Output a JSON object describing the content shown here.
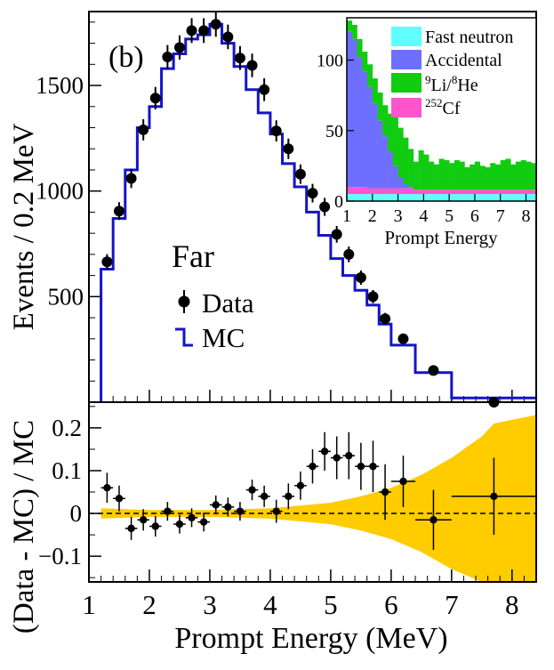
{
  "chart_data": [
    {
      "type": "line",
      "panel_label": "(b)",
      "site_label": "Far",
      "ylabel": "Events / 0.2 MeV",
      "xlim": [
        1,
        8.4
      ],
      "ylim": [
        0,
        1850
      ],
      "yticks": [
        500,
        1000,
        1500
      ],
      "legend": [
        {
          "name": "Data",
          "marker": "dot"
        },
        {
          "name": "MC",
          "marker": "step",
          "color": "#1414c8"
        }
      ],
      "series": [
        {
          "name": "Data",
          "x": [
            1.3,
            1.5,
            1.7,
            1.9,
            2.1,
            2.3,
            2.5,
            2.7,
            2.9,
            3.1,
            3.3,
            3.5,
            3.7,
            3.9,
            4.1,
            4.3,
            4.5,
            4.7,
            4.9,
            5.1,
            5.3,
            5.5,
            5.7,
            5.9,
            6.2,
            6.7,
            7.7
          ],
          "y": [
            665,
            905,
            1060,
            1290,
            1440,
            1635,
            1680,
            1760,
            1760,
            1790,
            1730,
            1630,
            1595,
            1480,
            1285,
            1200,
            1080,
            990,
            925,
            795,
            700,
            590,
            500,
            395,
            300,
            150,
            0
          ]
        },
        {
          "name": "MC",
          "bin_edges": [
            1.2,
            1.4,
            1.6,
            1.8,
            2.0,
            2.2,
            2.4,
            2.6,
            2.8,
            3.0,
            3.2,
            3.4,
            3.6,
            3.8,
            4.0,
            4.2,
            4.4,
            4.6,
            4.8,
            5.0,
            5.2,
            5.4,
            5.6,
            5.8,
            6.0,
            6.4,
            7.0,
            8.4
          ],
          "y": [
            630,
            870,
            1100,
            1300,
            1400,
            1580,
            1650,
            1720,
            1740,
            1790,
            1700,
            1590,
            1480,
            1370,
            1270,
            1130,
            1020,
            900,
            790,
            680,
            600,
            530,
            460,
            370,
            270,
            140,
            20
          ]
        }
      ]
    },
    {
      "type": "area",
      "inset": true,
      "xlabel": "Prompt Energy",
      "xlim": [
        1,
        8.4
      ],
      "ylim": [
        0,
        130
      ],
      "xticks": [
        1,
        2,
        3,
        4,
        5,
        6,
        7,
        8
      ],
      "yticks": [
        0,
        50,
        100
      ],
      "series": [
        {
          "name": "Fast neutron",
          "color": "#5fffff",
          "values": [
            5,
            5,
            5,
            5,
            5,
            5,
            5,
            5,
            5,
            5,
            5,
            5,
            5,
            5,
            5,
            5,
            5,
            5,
            5,
            5,
            5,
            5,
            5,
            5,
            5,
            5,
            5,
            5,
            5,
            5,
            5,
            5,
            5,
            5,
            5,
            5,
            5
          ]
        },
        {
          "name": "Accidental",
          "color": "#6f6fff",
          "values": [
            110,
            105,
            92,
            82,
            72,
            60,
            48,
            37,
            26,
            16,
            8,
            3,
            1,
            0,
            0,
            0,
            0,
            0,
            0,
            0,
            0,
            0,
            0,
            0,
            0,
            0,
            0,
            0,
            0,
            0,
            0,
            0,
            0,
            0,
            0,
            0,
            0
          ]
        },
        {
          "name": "9Li/8He",
          "color": "#11cc11",
          "values": [
            8,
            10,
            13,
            14,
            16,
            18,
            20,
            22,
            27,
            35,
            35,
            33,
            27,
            20,
            28,
            25,
            20,
            18,
            22,
            21,
            19,
            21,
            20,
            16,
            18,
            20,
            17,
            16,
            19,
            18,
            21,
            22,
            18,
            20,
            21,
            20,
            19
          ]
        },
        {
          "name": "252Cf",
          "color": "#ff55cc",
          "values": [
            5,
            5,
            5,
            5,
            4,
            4,
            4,
            4,
            4,
            4,
            4,
            4,
            4,
            3,
            3,
            3,
            3,
            3,
            3,
            3,
            3,
            3,
            3,
            3,
            3,
            3,
            3,
            3,
            3,
            3,
            3,
            3,
            3,
            3,
            3,
            3,
            3
          ]
        }
      ],
      "legend": [
        {
          "label": "Fast neutron",
          "color": "#5fffff"
        },
        {
          "label": "Accidental",
          "color": "#6f6fff"
        },
        {
          "sup1": "9",
          "base1": "Li/",
          "sup2": "8",
          "base2": "He",
          "color": "#11cc11"
        },
        {
          "sup1": "252",
          "base1": "Cf",
          "color": "#ff55cc"
        }
      ]
    },
    {
      "type": "scatter",
      "xlabel": "Prompt Energy (MeV)",
      "ylabel": "(Data - MC) / MC",
      "xlim": [
        1,
        8.4
      ],
      "ylim": [
        -0.16,
        0.26
      ],
      "xticks": [
        1,
        2,
        3,
        4,
        5,
        6,
        7,
        8
      ],
      "yticks": [
        -0.1,
        0,
        0.1,
        0.2
      ],
      "ytick_labels": [
        "−0.1",
        "0",
        "0.1",
        "0.2"
      ],
      "band_color": "#ffcc00",
      "band": {
        "x": [
          1.2,
          2,
          3,
          4,
          5,
          5.5,
          6,
          6.5,
          7,
          7.5,
          7.7,
          8.4
        ],
        "half_width": [
          0.012,
          0.008,
          0.008,
          0.012,
          0.025,
          0.04,
          0.06,
          0.09,
          0.13,
          0.18,
          0.21,
          0.23
        ]
      },
      "points": {
        "x": [
          1.3,
          1.5,
          1.7,
          1.9,
          2.1,
          2.3,
          2.5,
          2.7,
          2.9,
          3.1,
          3.3,
          3.5,
          3.7,
          3.9,
          4.1,
          4.3,
          4.5,
          4.7,
          4.9,
          5.1,
          5.3,
          5.5,
          5.7,
          5.9,
          6.2,
          6.7,
          7.7
        ],
        "xerr": [
          0.1,
          0.1,
          0.1,
          0.1,
          0.1,
          0.1,
          0.1,
          0.1,
          0.1,
          0.1,
          0.1,
          0.1,
          0.1,
          0.1,
          0.1,
          0.1,
          0.1,
          0.1,
          0.1,
          0.1,
          0.1,
          0.1,
          0.1,
          0.1,
          0.2,
          0.3,
          0.7
        ],
        "y": [
          0.06,
          0.035,
          -0.035,
          -0.015,
          -0.03,
          0.005,
          -0.025,
          -0.01,
          -0.02,
          0.02,
          0.015,
          0.005,
          0.055,
          0.04,
          0.005,
          0.04,
          0.065,
          0.11,
          0.145,
          0.13,
          0.135,
          0.11,
          0.11,
          0.05,
          0.075,
          -0.015,
          0.04
        ],
        "yerr": [
          0.035,
          0.03,
          0.027,
          0.025,
          0.024,
          0.022,
          0.022,
          0.022,
          0.022,
          0.022,
          0.022,
          0.022,
          0.024,
          0.025,
          0.027,
          0.03,
          0.033,
          0.04,
          0.045,
          0.05,
          0.055,
          0.055,
          0.06,
          0.065,
          0.06,
          0.07,
          0.09
        ]
      }
    }
  ]
}
